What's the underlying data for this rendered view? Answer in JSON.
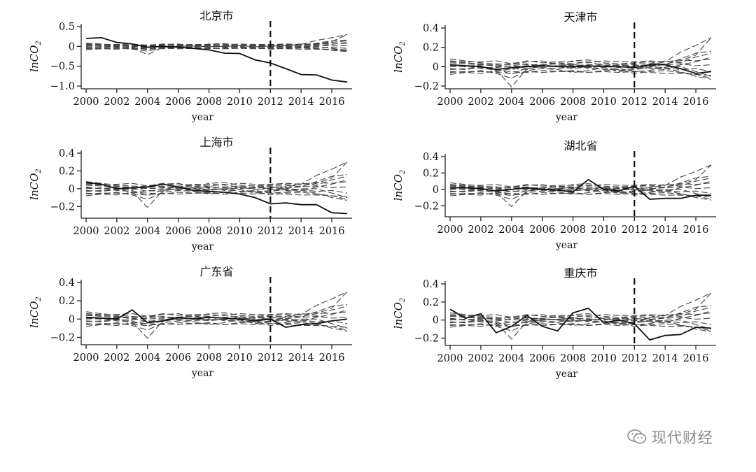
{
  "watermark": {
    "text": "现代财经",
    "icon": "wechat-icon"
  },
  "chart_data": [
    {
      "type": "line",
      "title": "北京市",
      "xlabel": "year",
      "ylabel": "lnCO2",
      "xlim": [
        2000,
        2017
      ],
      "ylim": [
        -1.0,
        0.5
      ],
      "yticks": [
        -1.0,
        -0.5,
        0,
        0.5
      ],
      "yticklabels": [
        "−1.0",
        "−0.5",
        "0",
        "0.5"
      ],
      "xticks": [
        2000,
        2002,
        2004,
        2006,
        2008,
        2010,
        2012,
        2014,
        2016
      ],
      "policy_year": 2012,
      "series": [
        {
          "role": "treated",
          "x": [
            2000,
            2001,
            2002,
            2003,
            2004,
            2005,
            2006,
            2007,
            2008,
            2009,
            2010,
            2011,
            2012,
            2013,
            2014,
            2015,
            2016,
            2017
          ],
          "values": [
            0.2,
            0.22,
            0.1,
            0.06,
            -0.02,
            0.0,
            -0.02,
            -0.05,
            -0.09,
            -0.17,
            -0.18,
            -0.34,
            -0.42,
            -0.56,
            -0.71,
            -0.72,
            -0.85,
            -0.9
          ]
        }
      ]
    },
    {
      "type": "line",
      "title": "天津市",
      "xlabel": "year",
      "ylabel": "lnCO2",
      "xlim": [
        2000,
        2017
      ],
      "ylim": [
        -0.2,
        0.4
      ],
      "yticks": [
        -0.2,
        0,
        0.2,
        0.4
      ],
      "yticklabels": [
        "−0.2",
        "0",
        "0.2",
        "0.4"
      ],
      "xticks": [
        2000,
        2002,
        2004,
        2006,
        2008,
        2010,
        2012,
        2014,
        2016
      ],
      "policy_year": 2012,
      "series": [
        {
          "role": "treated",
          "x": [
            2000,
            2001,
            2002,
            2003,
            2004,
            2005,
            2006,
            2007,
            2008,
            2009,
            2010,
            2011,
            2012,
            2013,
            2014,
            2015,
            2016,
            2017
          ],
          "values": [
            0.02,
            0.01,
            0.0,
            -0.03,
            -0.01,
            0.0,
            0.01,
            0.0,
            0.0,
            0.01,
            0.0,
            0.0,
            -0.01,
            0.02,
            0.02,
            -0.02,
            -0.07,
            -0.05
          ]
        }
      ]
    },
    {
      "type": "line",
      "title": "上海市",
      "xlabel": "year",
      "ylabel": "lnCO2",
      "xlim": [
        2000,
        2017
      ],
      "ylim": [
        -0.3,
        0.4
      ],
      "yticks": [
        -0.2,
        0,
        0.2,
        0.4
      ],
      "yticklabels": [
        "−0.2",
        "0",
        "0.2",
        "0.4"
      ],
      "xticks": [
        2000,
        2002,
        2004,
        2006,
        2008,
        2010,
        2012,
        2014,
        2016
      ],
      "policy_year": 2012,
      "series": [
        {
          "role": "treated",
          "x": [
            2000,
            2001,
            2002,
            2003,
            2004,
            2005,
            2006,
            2007,
            2008,
            2009,
            2010,
            2011,
            2012,
            2013,
            2014,
            2015,
            2016,
            2017
          ],
          "values": [
            0.07,
            0.05,
            0.0,
            0.01,
            0.02,
            0.05,
            0.02,
            -0.02,
            -0.03,
            -0.04,
            -0.06,
            -0.1,
            -0.17,
            -0.16,
            -0.18,
            -0.18,
            -0.27,
            -0.28
          ]
        }
      ]
    },
    {
      "type": "line",
      "title": "湖北省",
      "xlabel": "year",
      "ylabel": "lnCO2",
      "xlim": [
        2000,
        2017
      ],
      "ylim": [
        -0.3,
        0.4
      ],
      "yticks": [
        -0.2,
        0,
        0.2,
        0.4
      ],
      "yticklabels": [
        "−0.2",
        "0",
        "0.2",
        "0.4"
      ],
      "xticks": [
        2000,
        2002,
        2004,
        2006,
        2008,
        2010,
        2012,
        2014,
        2016
      ],
      "policy_year": 2012,
      "series": [
        {
          "role": "treated",
          "x": [
            2000,
            2001,
            2002,
            2003,
            2004,
            2005,
            2006,
            2007,
            2008,
            2009,
            2010,
            2011,
            2012,
            2013,
            2014,
            2015,
            2016,
            2017
          ],
          "values": [
            0.02,
            0.02,
            0.01,
            -0.02,
            0.0,
            0.02,
            0.0,
            -0.01,
            -0.03,
            0.12,
            0.0,
            -0.02,
            0.04,
            -0.12,
            -0.11,
            -0.11,
            -0.07,
            -0.07
          ]
        }
      ]
    },
    {
      "type": "line",
      "title": "广东省",
      "xlabel": "year",
      "ylabel": "lnCO2",
      "xlim": [
        2000,
        2017
      ],
      "ylim": [
        -0.25,
        0.4
      ],
      "yticks": [
        -0.2,
        0,
        0.2,
        0.4
      ],
      "yticklabels": [
        "−0.2",
        "0",
        "0.2",
        "0.4"
      ],
      "xticks": [
        2000,
        2002,
        2004,
        2006,
        2008,
        2010,
        2012,
        2014,
        2016
      ],
      "policy_year": 2012,
      "series": [
        {
          "role": "treated",
          "x": [
            2000,
            2001,
            2002,
            2003,
            2004,
            2005,
            2006,
            2007,
            2008,
            2009,
            2010,
            2011,
            2012,
            2013,
            2014,
            2015,
            2016,
            2017
          ],
          "values": [
            0.02,
            0.01,
            0.0,
            0.1,
            -0.04,
            -0.02,
            0.02,
            0.0,
            0.02,
            0.01,
            0.0,
            -0.02,
            0.0,
            -0.09,
            -0.06,
            -0.05,
            -0.02,
            0.0
          ]
        }
      ]
    },
    {
      "type": "line",
      "title": "重庆市",
      "xlabel": "year",
      "ylabel": "lnCO2",
      "xlim": [
        2000,
        2017
      ],
      "ylim": [
        -0.25,
        0.4
      ],
      "yticks": [
        -0.2,
        0,
        0.2,
        0.4
      ],
      "yticklabels": [
        "−0.2",
        "0",
        "0.2",
        "0.4"
      ],
      "xticks": [
        2000,
        2002,
        2004,
        2006,
        2008,
        2010,
        2012,
        2014,
        2016
      ],
      "policy_year": 2012,
      "series": [
        {
          "role": "treated",
          "x": [
            2000,
            2001,
            2002,
            2003,
            2004,
            2005,
            2006,
            2007,
            2008,
            2009,
            2010,
            2011,
            2012,
            2013,
            2014,
            2015,
            2016,
            2017
          ],
          "values": [
            0.12,
            0.02,
            0.07,
            -0.14,
            -0.07,
            0.05,
            -0.07,
            -0.12,
            0.08,
            0.13,
            -0.03,
            0.0,
            -0.04,
            -0.22,
            -0.17,
            -0.16,
            -0.08,
            -0.09
          ]
        }
      ]
    }
  ],
  "placebo_series": [
    [
      0.04,
      0.03,
      0.02,
      0.02,
      0.0,
      0.01,
      0.02,
      0.03,
      0.01,
      0.02,
      0.03,
      0.01,
      0.02,
      0.0,
      0.03,
      0.06,
      0.12,
      0.3
    ],
    [
      0.0,
      0.01,
      -0.02,
      -0.03,
      -0.21,
      -0.02,
      0.0,
      0.01,
      -0.01,
      0.0,
      0.02,
      -0.01,
      0.01,
      0.02,
      0.05,
      0.15,
      0.22,
      0.3
    ],
    [
      0.08,
      0.06,
      0.04,
      0.03,
      0.02,
      0.05,
      0.06,
      0.02,
      0.06,
      0.07,
      0.04,
      0.03,
      0.04,
      0.05,
      0.02,
      0.08,
      0.14,
      0.16
    ],
    [
      -0.05,
      -0.06,
      -0.04,
      -0.07,
      -0.12,
      -0.04,
      -0.02,
      -0.03,
      -0.06,
      -0.04,
      -0.01,
      -0.05,
      -0.03,
      -0.01,
      -0.02,
      -0.05,
      -0.1,
      -0.13
    ],
    [
      0.02,
      0.0,
      0.01,
      -0.05,
      -0.02,
      -0.03,
      0.01,
      0.0,
      -0.02,
      0.0,
      -0.03,
      -0.02,
      -0.05,
      -0.04,
      0.0,
      0.0,
      -0.05,
      -0.1
    ],
    [
      -0.02,
      -0.03,
      -0.01,
      -0.01,
      0.01,
      0.03,
      0.0,
      0.01,
      0.02,
      0.01,
      0.0,
      0.02,
      0.0,
      -0.02,
      -0.03,
      0.02,
      0.05,
      0.1
    ],
    [
      0.05,
      0.04,
      0.03,
      0.0,
      0.04,
      0.02,
      0.02,
      0.04,
      0.03,
      0.05,
      0.01,
      0.02,
      0.03,
      0.03,
      0.06,
      0.04,
      0.1,
      0.14
    ],
    [
      -0.08,
      -0.06,
      -0.07,
      -0.04,
      -0.05,
      -0.06,
      -0.04,
      -0.05,
      -0.04,
      -0.06,
      -0.04,
      -0.03,
      -0.07,
      -0.05,
      -0.04,
      -0.06,
      -0.08,
      -0.12
    ],
    [
      0.01,
      0.0,
      0.02,
      0.01,
      -0.03,
      0.0,
      -0.01,
      -0.02,
      0.0,
      -0.01,
      0.01,
      0.0,
      -0.01,
      0.01,
      0.02,
      0.03,
      0.01,
      0.02
    ],
    [
      -0.03,
      -0.02,
      0.0,
      -0.02,
      -0.08,
      -0.01,
      0.02,
      0.0,
      0.03,
      -0.02,
      -0.01,
      -0.04,
      -0.02,
      0.0,
      -0.01,
      -0.03,
      -0.02,
      -0.05
    ],
    [
      0.06,
      0.05,
      0.05,
      0.06,
      0.03,
      0.06,
      0.04,
      0.05,
      0.05,
      0.04,
      0.06,
      0.05,
      0.05,
      0.06,
      0.05,
      0.07,
      0.06,
      0.08
    ],
    [
      -0.06,
      -0.05,
      -0.05,
      -0.06,
      -0.07,
      -0.05,
      -0.06,
      -0.05,
      -0.05,
      -0.06,
      -0.05,
      -0.06,
      -0.05,
      -0.06,
      -0.07,
      -0.07,
      -0.08,
      -0.09
    ]
  ]
}
